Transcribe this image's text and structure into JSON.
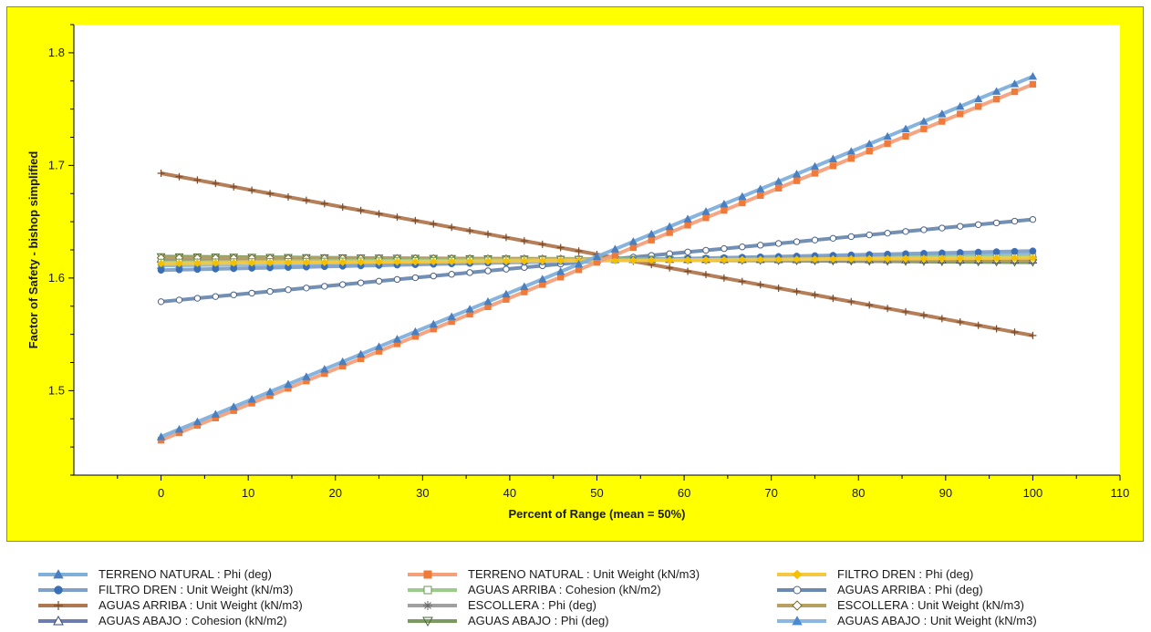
{
  "chart_data": {
    "type": "line",
    "title": "",
    "xlabel": "Percent of Range (mean = 50%)",
    "ylabel": "Factor of Safety - bishop simplified",
    "xlim": [
      -10,
      110
    ],
    "ylim": [
      1.425,
      1.825
    ],
    "x_ticks": [
      0,
      10,
      20,
      30,
      40,
      50,
      60,
      70,
      80,
      90,
      100,
      110
    ],
    "y_ticks": [
      1.5,
      1.6,
      1.7,
      1.8
    ],
    "grid": false,
    "legend_position": "bottom",
    "background": "#ffff00",
    "plot_background": "#ffffff",
    "series": [
      {
        "name": "TERRENO NATURAL : Phi (deg)",
        "color": "#7fb0dc",
        "marker": "triangle-filled",
        "marker_color": "#4a7fc0",
        "y_start": 1.459,
        "y_end": 1.779
      },
      {
        "name": "TERRENO NATURAL : Unit Weight (kN/m3)",
        "color": "#f4a07a",
        "marker": "square-filled",
        "marker_color": "#ef7a3a",
        "y_start": 1.456,
        "y_end": 1.772
      },
      {
        "name": "FILTRO DREN : Phi (deg)",
        "color": "#f5c842",
        "marker": "diamond-filled",
        "marker_color": "#f5c000",
        "y_start": 1.613,
        "y_end": 1.618
      },
      {
        "name": "FILTRO DREN : Unit Weight (kN/m3)",
        "color": "#7fa0c8",
        "marker": "circle-filled",
        "marker_color": "#3a6fb8",
        "y_start": 1.607,
        "y_end": 1.624
      },
      {
        "name": "AGUAS ARRIBA : Cohesion (kN/m2)",
        "color": "#9ccc8c",
        "marker": "square-open",
        "marker_color": "#6a9a5a",
        "y_start": 1.614,
        "y_end": 1.619
      },
      {
        "name": "AGUAS ARRIBA : Phi (deg)",
        "color": "#6c8ab0",
        "marker": "circle-open",
        "marker_color": "#4a6288",
        "y_start": 1.579,
        "y_end": 1.652
      },
      {
        "name": "AGUAS ARRIBA : Unit Weight (kN/m3)",
        "color": "#b07850",
        "marker": "plus",
        "marker_color": "#7a4a2a",
        "y_start": 1.693,
        "y_end": 1.549
      },
      {
        "name": "ESCOLLERA : Phi (deg)",
        "color": "#a0a0a0",
        "marker": "star",
        "marker_color": "#6a6a6a",
        "y_start": 1.614,
        "y_end": 1.618
      },
      {
        "name": "ESCOLLERA : Unit Weight (kN/m3)",
        "color": "#b8a060",
        "marker": "diamond-open",
        "marker_color": "#7a6a30",
        "y_start": 1.618,
        "y_end": 1.616
      },
      {
        "name": "AGUAS ABAJO : Cohesion (kN/m2)",
        "color": "#6c7cb0",
        "marker": "triangle-open",
        "marker_color": "#3a4a7a",
        "y_start": 1.617,
        "y_end": 1.616
      },
      {
        "name": "AGUAS ABAJO : Phi (deg)",
        "color": "#7a9a60",
        "marker": "triangle-down-open",
        "marker_color": "#4a6a3a",
        "y_start": 1.619,
        "y_end": 1.614
      },
      {
        "name": "AGUAS ABAJO : Unit Weight (kN/m3)",
        "color": "#8ab8e0",
        "marker": "triangle-filled",
        "marker_color": "#4a8ad0",
        "y_start": 1.611,
        "y_end": 1.621
      }
    ]
  }
}
